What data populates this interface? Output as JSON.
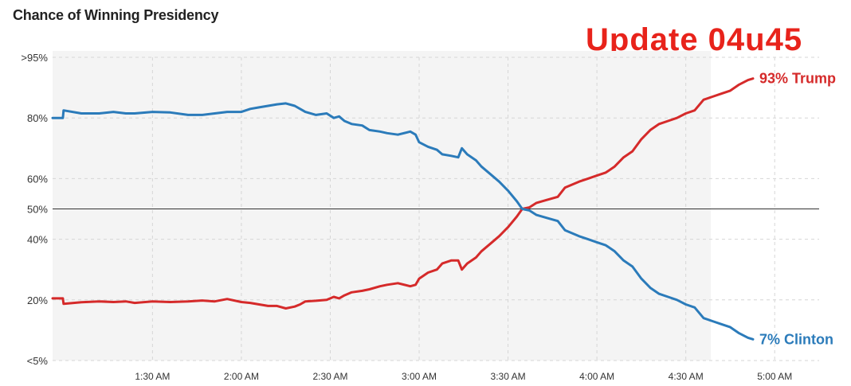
{
  "chart_title": "Chance of Winning Presidency",
  "update_label": "Update 04u45",
  "chart_data": {
    "type": "line",
    "title": "Chance of Winning Presidency",
    "xlabel": "",
    "ylabel": "",
    "x_unit": "hours after midnight",
    "xlim": [
      0.938,
      5.25
    ],
    "ylim": [
      0,
      100
    ],
    "grid": true,
    "y_ticks": [
      {
        "value": 100,
        "label": ">95%"
      },
      {
        "value": 80,
        "label": "80%"
      },
      {
        "value": 60,
        "label": "60%"
      },
      {
        "value": 50,
        "label": "50%"
      },
      {
        "value": 40,
        "label": "40%"
      },
      {
        "value": 20,
        "label": "20%"
      },
      {
        "value": 0,
        "label": "<5%"
      }
    ],
    "x_ticks": [
      {
        "value": 1.5,
        "label": "1:30 AM"
      },
      {
        "value": 2.0,
        "label": "2:00 AM"
      },
      {
        "value": 2.5,
        "label": "2:30 AM"
      },
      {
        "value": 3.0,
        "label": "3:00 AM"
      },
      {
        "value": 3.5,
        "label": "3:30 AM"
      },
      {
        "value": 4.0,
        "label": "4:00 AM"
      },
      {
        "value": 4.5,
        "label": "4:30 AM"
      },
      {
        "value": 5.0,
        "label": "5:00 AM"
      }
    ],
    "reference_line": 50,
    "series": [
      {
        "name": "Trump",
        "color": "#d52a2a",
        "end_label": "93% Trump",
        "points": [
          [
            0.938,
            20.5
          ],
          [
            0.996,
            20.5
          ],
          [
            1.0,
            18.7
          ],
          [
            1.1,
            19.2
          ],
          [
            1.2,
            19.5
          ],
          [
            1.28,
            19.3
          ],
          [
            1.35,
            19.5
          ],
          [
            1.4,
            19.0
          ],
          [
            1.5,
            19.5
          ],
          [
            1.6,
            19.3
          ],
          [
            1.7,
            19.5
          ],
          [
            1.78,
            19.8
          ],
          [
            1.85,
            19.5
          ],
          [
            1.92,
            20.3
          ],
          [
            2.0,
            19.3
          ],
          [
            2.05,
            19.0
          ],
          [
            2.1,
            18.5
          ],
          [
            2.15,
            18.0
          ],
          [
            2.2,
            18.0
          ],
          [
            2.25,
            17.2
          ],
          [
            2.3,
            17.8
          ],
          [
            2.33,
            18.5
          ],
          [
            2.36,
            19.5
          ],
          [
            2.42,
            19.7
          ],
          [
            2.48,
            20.0
          ],
          [
            2.52,
            21.0
          ],
          [
            2.55,
            20.5
          ],
          [
            2.58,
            21.5
          ],
          [
            2.62,
            22.5
          ],
          [
            2.68,
            23.0
          ],
          [
            2.72,
            23.5
          ],
          [
            2.78,
            24.5
          ],
          [
            2.82,
            25.0
          ],
          [
            2.88,
            25.5
          ],
          [
            2.95,
            24.5
          ],
          [
            2.98,
            25.0
          ],
          [
            3.0,
            27.0
          ],
          [
            3.05,
            29.0
          ],
          [
            3.1,
            30.0
          ],
          [
            3.13,
            32.0
          ],
          [
            3.18,
            33.0
          ],
          [
            3.22,
            33.0
          ],
          [
            3.24,
            30.0
          ],
          [
            3.27,
            32.0
          ],
          [
            3.32,
            34.0
          ],
          [
            3.35,
            36.0
          ],
          [
            3.4,
            38.5
          ],
          [
            3.45,
            41.0
          ],
          [
            3.5,
            44.0
          ],
          [
            3.55,
            47.5
          ],
          [
            3.58,
            50.0
          ],
          [
            3.62,
            50.5
          ],
          [
            3.66,
            52.0
          ],
          [
            3.72,
            53.0
          ],
          [
            3.78,
            54.0
          ],
          [
            3.82,
            57.0
          ],
          [
            3.86,
            58.0
          ],
          [
            3.9,
            59.0
          ],
          [
            3.95,
            60.0
          ],
          [
            4.0,
            61.0
          ],
          [
            4.05,
            62.0
          ],
          [
            4.1,
            64.0
          ],
          [
            4.15,
            67.0
          ],
          [
            4.2,
            69.0
          ],
          [
            4.25,
            73.0
          ],
          [
            4.3,
            76.0
          ],
          [
            4.35,
            78.0
          ],
          [
            4.4,
            79.0
          ],
          [
            4.45,
            80.0
          ],
          [
            4.5,
            81.5
          ],
          [
            4.55,
            82.5
          ],
          [
            4.6,
            86.0
          ],
          [
            4.65,
            87.0
          ],
          [
            4.7,
            88.0
          ],
          [
            4.75,
            89.0
          ],
          [
            4.8,
            91.0
          ],
          [
            4.85,
            92.5
          ],
          [
            4.878,
            93.0
          ]
        ]
      },
      {
        "name": "Clinton",
        "color": "#2b7bba",
        "end_label": "7% Clinton",
        "points": [
          [
            0.938,
            80.0
          ],
          [
            0.996,
            80.0
          ],
          [
            1.0,
            82.5
          ],
          [
            1.1,
            81.5
          ],
          [
            1.2,
            81.5
          ],
          [
            1.28,
            82.0
          ],
          [
            1.35,
            81.5
          ],
          [
            1.4,
            81.5
          ],
          [
            1.5,
            82.0
          ],
          [
            1.6,
            81.8
          ],
          [
            1.7,
            81.0
          ],
          [
            1.78,
            81.0
          ],
          [
            1.85,
            81.5
          ],
          [
            1.92,
            82.0
          ],
          [
            2.0,
            82.0
          ],
          [
            2.05,
            83.0
          ],
          [
            2.1,
            83.5
          ],
          [
            2.15,
            84.0
          ],
          [
            2.2,
            84.5
          ],
          [
            2.25,
            84.8
          ],
          [
            2.3,
            84.0
          ],
          [
            2.33,
            83.0
          ],
          [
            2.36,
            82.0
          ],
          [
            2.42,
            81.0
          ],
          [
            2.48,
            81.5
          ],
          [
            2.52,
            80.0
          ],
          [
            2.55,
            80.5
          ],
          [
            2.58,
            79.0
          ],
          [
            2.62,
            78.0
          ],
          [
            2.68,
            77.5
          ],
          [
            2.72,
            76.0
          ],
          [
            2.78,
            75.5
          ],
          [
            2.82,
            75.0
          ],
          [
            2.88,
            74.5
          ],
          [
            2.95,
            75.5
          ],
          [
            2.98,
            74.5
          ],
          [
            3.0,
            72.0
          ],
          [
            3.05,
            70.5
          ],
          [
            3.1,
            69.5
          ],
          [
            3.13,
            68.0
          ],
          [
            3.18,
            67.5
          ],
          [
            3.22,
            67.0
          ],
          [
            3.24,
            70.0
          ],
          [
            3.27,
            68.0
          ],
          [
            3.32,
            66.0
          ],
          [
            3.35,
            64.0
          ],
          [
            3.4,
            61.5
          ],
          [
            3.45,
            59.0
          ],
          [
            3.5,
            56.0
          ],
          [
            3.55,
            52.5
          ],
          [
            3.58,
            50.0
          ],
          [
            3.62,
            49.5
          ],
          [
            3.66,
            48.0
          ],
          [
            3.72,
            47.0
          ],
          [
            3.78,
            46.0
          ],
          [
            3.82,
            43.0
          ],
          [
            3.86,
            42.0
          ],
          [
            3.9,
            41.0
          ],
          [
            3.95,
            40.0
          ],
          [
            4.0,
            39.0
          ],
          [
            4.05,
            38.0
          ],
          [
            4.1,
            36.0
          ],
          [
            4.15,
            33.0
          ],
          [
            4.2,
            31.0
          ],
          [
            4.25,
            27.0
          ],
          [
            4.3,
            24.0
          ],
          [
            4.35,
            22.0
          ],
          [
            4.4,
            21.0
          ],
          [
            4.45,
            20.0
          ],
          [
            4.5,
            18.5
          ],
          [
            4.55,
            17.5
          ],
          [
            4.6,
            14.0
          ],
          [
            4.65,
            13.0
          ],
          [
            4.7,
            12.0
          ],
          [
            4.75,
            11.0
          ],
          [
            4.8,
            9.0
          ],
          [
            4.85,
            7.5
          ],
          [
            4.878,
            7.0
          ]
        ]
      }
    ]
  }
}
